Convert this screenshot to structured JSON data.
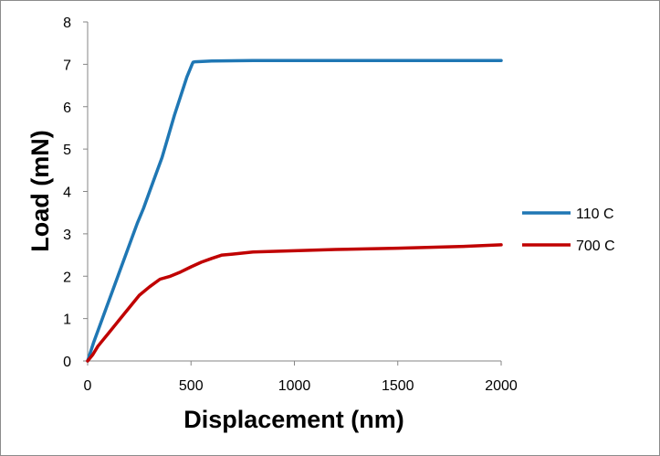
{
  "chart_data": {
    "type": "line",
    "title": "",
    "xlabel": "Displacement (nm)",
    "ylabel": "Load (mN)",
    "xlim": [
      0,
      2000
    ],
    "ylim": [
      0,
      8
    ],
    "x_ticks": [
      "0",
      "500",
      "1000",
      "1500",
      "2000"
    ],
    "y_ticks": [
      "0",
      "1",
      "2",
      "3",
      "4",
      "5",
      "6",
      "7",
      "8"
    ],
    "grid": false,
    "legend_position": "right",
    "series": [
      {
        "name": "110 C",
        "color": "#1f77b4",
        "x": [
          0,
          30,
          60,
          90,
          120,
          150,
          180,
          210,
          240,
          270,
          300,
          330,
          360,
          390,
          420,
          450,
          480,
          505,
          510,
          520,
          600,
          800,
          1000,
          1200,
          1500,
          1800,
          2000
        ],
        "y": [
          0,
          0.45,
          0.85,
          1.25,
          1.65,
          2.05,
          2.45,
          2.85,
          3.25,
          3.6,
          4.0,
          4.4,
          4.8,
          5.3,
          5.8,
          6.25,
          6.7,
          7.0,
          7.05,
          7.06,
          7.08,
          7.09,
          7.09,
          7.09,
          7.09,
          7.09,
          7.09
        ]
      },
      {
        "name": "700 C",
        "color": "#c00000",
        "x": [
          0,
          25,
          50,
          75,
          100,
          150,
          200,
          250,
          300,
          350,
          400,
          450,
          500,
          550,
          600,
          650,
          700,
          800,
          1000,
          1200,
          1500,
          1800,
          2000
        ],
        "y": [
          0,
          0.15,
          0.35,
          0.5,
          0.65,
          0.95,
          1.25,
          1.55,
          1.75,
          1.93,
          2.0,
          2.1,
          2.22,
          2.33,
          2.42,
          2.5,
          2.52,
          2.57,
          2.6,
          2.63,
          2.66,
          2.7,
          2.74
        ]
      }
    ]
  }
}
